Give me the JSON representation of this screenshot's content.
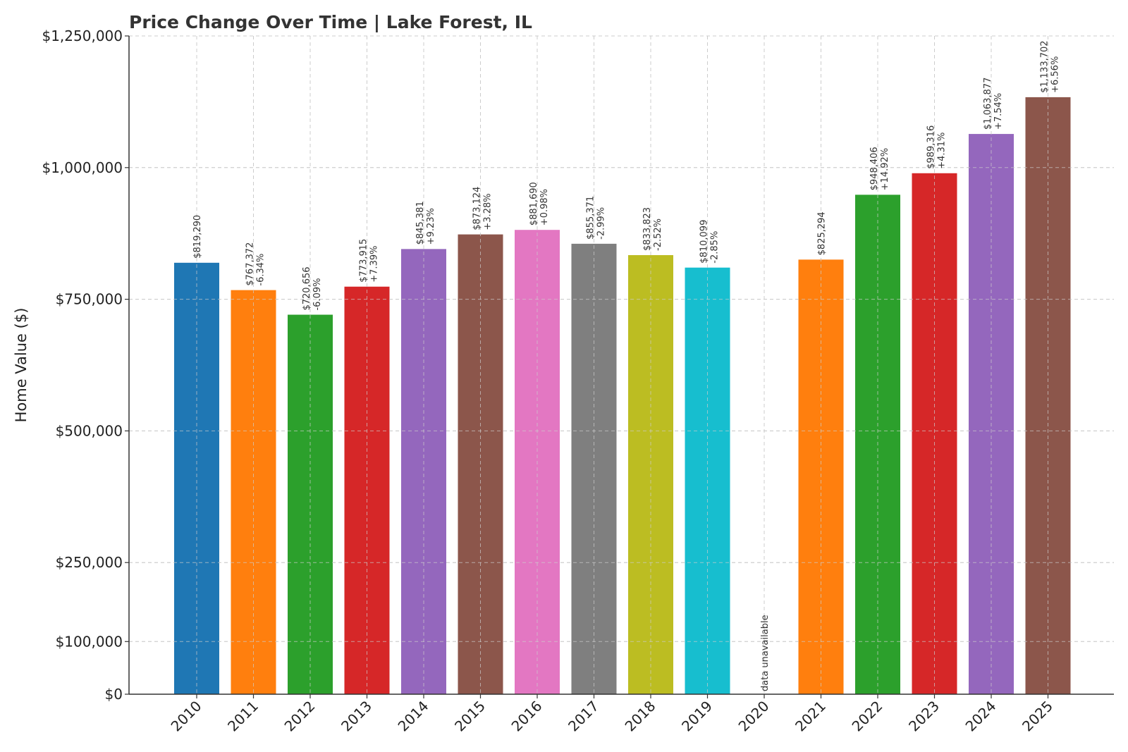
{
  "chart_data": {
    "type": "bar",
    "title": "Price Change Over Time | Lake Forest, IL",
    "xlabel": "",
    "ylabel": "Home Value ($)",
    "ylim": [
      0,
      1250000
    ],
    "yticks": [
      0,
      100000,
      250000,
      500000,
      750000,
      1000000,
      1250000
    ],
    "ytick_labels": [
      "$0",
      "$100,000",
      "$250,000",
      "$500,000",
      "$750,000",
      "$1,000,000",
      "$1,250,000"
    ],
    "grid": true,
    "categories": [
      "2010",
      "2011",
      "2012",
      "2013",
      "2014",
      "2015",
      "2016",
      "2017",
      "2018",
      "2019",
      "2020",
      "2021",
      "2022",
      "2023",
      "2024",
      "2025"
    ],
    "values": [
      819290,
      767372,
      720656,
      773915,
      845381,
      873124,
      881690,
      855371,
      833823,
      810099,
      null,
      825294,
      948406,
      989316,
      1063877,
      1133702
    ],
    "value_labels": [
      "$819,290",
      "$767,372",
      "$720,656",
      "$773,915",
      "$845,381",
      "$873,124",
      "$881,690",
      "$855,371",
      "$833,823",
      "$810,099",
      "",
      "$825,294",
      "$948,406",
      "$989,316",
      "$1,063,877",
      "$1,133,702"
    ],
    "change_labels": [
      "",
      "-6.34%",
      "-6.09%",
      "+7.39%",
      "+9.23%",
      "+3.28%",
      "+0.98%",
      "-2.99%",
      "-2.52%",
      "-2.85%",
      "",
      "",
      "+14.92%",
      "+4.31%",
      "+7.54%",
      "+6.56%"
    ],
    "missing_label": "data unavailable",
    "colors": [
      "#1f77b4",
      "#ff7f0e",
      "#2ca02c",
      "#d62728",
      "#9467bd",
      "#8c564b",
      "#e377c2",
      "#7f7f7f",
      "#bcbd22",
      "#17becf",
      "#1f77b4",
      "#ff7f0e",
      "#2ca02c",
      "#d62728",
      "#9467bd",
      "#8c564b"
    ]
  }
}
